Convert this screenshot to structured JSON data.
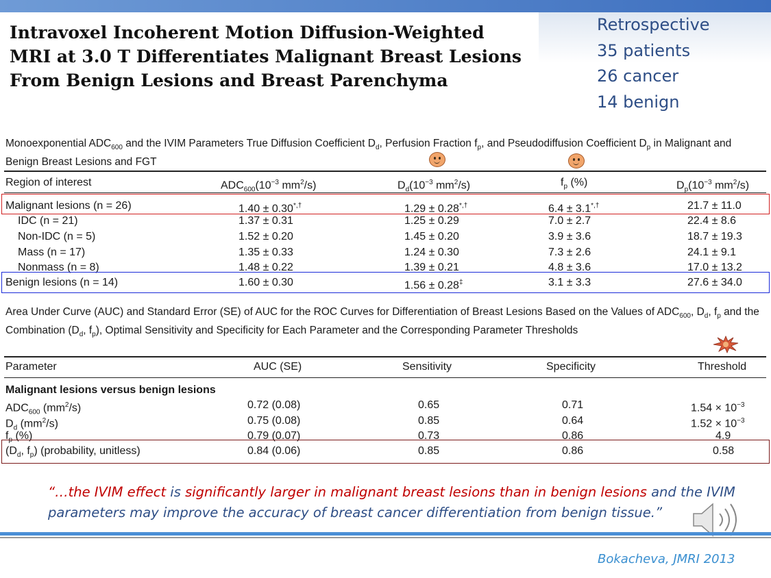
{
  "slide": {
    "title": "Intravoxel Incoherent Motion Diffusion-Weighted MRI at 3.0 T Differentiates Malignant Breast Lesions From Benign Lesions and Breast Parenchyma",
    "stats": [
      "Retrospective",
      "35 patients",
      "26 cancer",
      "14 benign"
    ],
    "quote": {
      "open": "“…",
      "part1": "the IVIM effect",
      "part2": " is ",
      "part3": "significantly larger in malignant breast lesions than in benign lesions",
      "part4": " and the IVIM parameters may improve the accuracy of breast cancer differentiation from benign tissue.”"
    },
    "citation": "Bokacheva, JMRI 2013",
    "accent_colors": {
      "blue_text": "#2e4e86",
      "red_text": "#c00000",
      "cyan_cite": "#3a8fd0",
      "box_red": "#d02020",
      "box_blue": "#1a2ad8",
      "box_dark_red": "#7a1a1a"
    }
  },
  "table1": {
    "caption": {
      "a": "Monoexponential ADC",
      "a_sub": "600",
      "b": " and the IVIM Parameters True Diffusion Coefficient D",
      "b_sub": "d",
      "c": ", Perfusion Fraction f",
      "c_sub": "p",
      "d": ", and Pseudodiffusion Coefficient D",
      "d_sub": "p",
      "e": " in Malignant and Benign Breast Lesions and FGT"
    },
    "headers": {
      "region": "Region of interest",
      "adc": "ADC",
      "adc_sub": "600",
      "adc_unit_a": "(10",
      "adc_unit_sup": "−3",
      "adc_unit_b": " mm",
      "adc_unit_sup2": "2",
      "adc_unit_c": "/s)",
      "dd": "D",
      "dd_sub": "d",
      "fp": "f",
      "fp_sub": "p",
      "fp_unit": " (%)",
      "dp": "D",
      "dp_sub": "p"
    },
    "rows": [
      {
        "region": "Malignant lesions (n =  26)",
        "adc": "1.40 ± 0.30",
        "adc_mark": "*,†",
        "dd": "1.29 ± 0.28",
        "dd_mark": "*,†",
        "fp": "6.4 ± 3.1",
        "fp_mark": "*,†",
        "dp": "21.7 ± 11.0"
      },
      {
        "region": "IDC (n =  21)",
        "adc": "1.37 ± 0.31",
        "adc_mark": "",
        "dd": "1.25 ± 0.29",
        "dd_mark": "",
        "fp": "7.0 ± 2.7",
        "fp_mark": "",
        "dp": "22.4 ± 8.6"
      },
      {
        "region": "Non-IDC (n =  5)",
        "adc": "1.52 ± 0.20",
        "adc_mark": "",
        "dd": "1.45 ± 0.20",
        "dd_mark": "",
        "fp": "3.9 ± 3.6",
        "fp_mark": "",
        "dp": "18.7 ± 19.3"
      },
      {
        "region": "Mass (n =  17)",
        "adc": "1.35 ± 0.33",
        "adc_mark": "",
        "dd": "1.24 ± 0.30",
        "dd_mark": "",
        "fp": "7.3 ± 2.6",
        "fp_mark": "",
        "dp": "24.1 ± 9.1"
      },
      {
        "region": "Nonmass (n =  8)",
        "adc": "1.48 ± 0.22",
        "adc_mark": "",
        "dd": "1.39 ± 0.21",
        "dd_mark": "",
        "fp": "4.8 ± 3.6",
        "fp_mark": "",
        "dp": "17.0 ± 13.2"
      },
      {
        "region": "Benign lesions (n =  14)",
        "adc": "1.60 ± 0.30",
        "adc_mark": "",
        "dd": "1.56 ± 0.28",
        "dd_mark": "‡",
        "fp": "3.1 ± 3.3",
        "fp_mark": "",
        "dp": "27.6 ± 34.0"
      }
    ]
  },
  "table2": {
    "caption": {
      "a": "Area Under Curve (AUC) and Standard Error (SE) of AUC for the ROC Curves for Differentiation of Breast Lesions Based on the Values of ADC",
      "a_sub": "600",
      "b": ", D",
      "b_sub": "d",
      "c": ", f",
      "c_sub": "p",
      "d": " and the Combination (D",
      "d_sub": "d",
      "e": ", f",
      "e_sub": "p",
      "f": "), Optimal Sensitivity and Specificity for Each Parameter and the Corresponding Parameter Thresholds"
    },
    "headers": {
      "parameter": "Parameter",
      "auc": "AUC (SE)",
      "sensitivity": "Sensitivity",
      "specificity": "Specificity",
      "threshold": "Threshold"
    },
    "section": "Malignant lesions versus benign lesions",
    "rows": [
      {
        "param_a": "ADC",
        "param_sub": "600",
        "param_b": " (mm",
        "param_sup": "2",
        "param_c": "/s)",
        "auc": "0.72 (0.08)",
        "sens": "0.65",
        "spec": "0.71",
        "thr": "1.54 × 10",
        "thr_sup": "−3"
      },
      {
        "param_a": "D",
        "param_sub": "d",
        "param_b": " (mm",
        "param_sup": "2",
        "param_c": "/s)",
        "auc": "0.75 (0.08)",
        "sens": "0.85",
        "spec": "0.64",
        "thr": "1.52 × 10",
        "thr_sup": "−3"
      },
      {
        "param_a": "f",
        "param_sub": "p",
        "param_b": " (%)",
        "param_sup": "",
        "param_c": "",
        "auc": "0.79 (0.07)",
        "sens": "0.73",
        "spec": "0.86",
        "thr": "4.9",
        "thr_sup": ""
      },
      {
        "param_a": "(D",
        "param_sub": "d",
        "param_b": ", f",
        "param_sup": "",
        "param_c": "p",
        "param_d": ") (probability, unitless)",
        "auc": "0.84 (0.06)",
        "sens": "0.85",
        "spec": "0.86",
        "thr": "0.58",
        "thr_sup": ""
      }
    ]
  }
}
